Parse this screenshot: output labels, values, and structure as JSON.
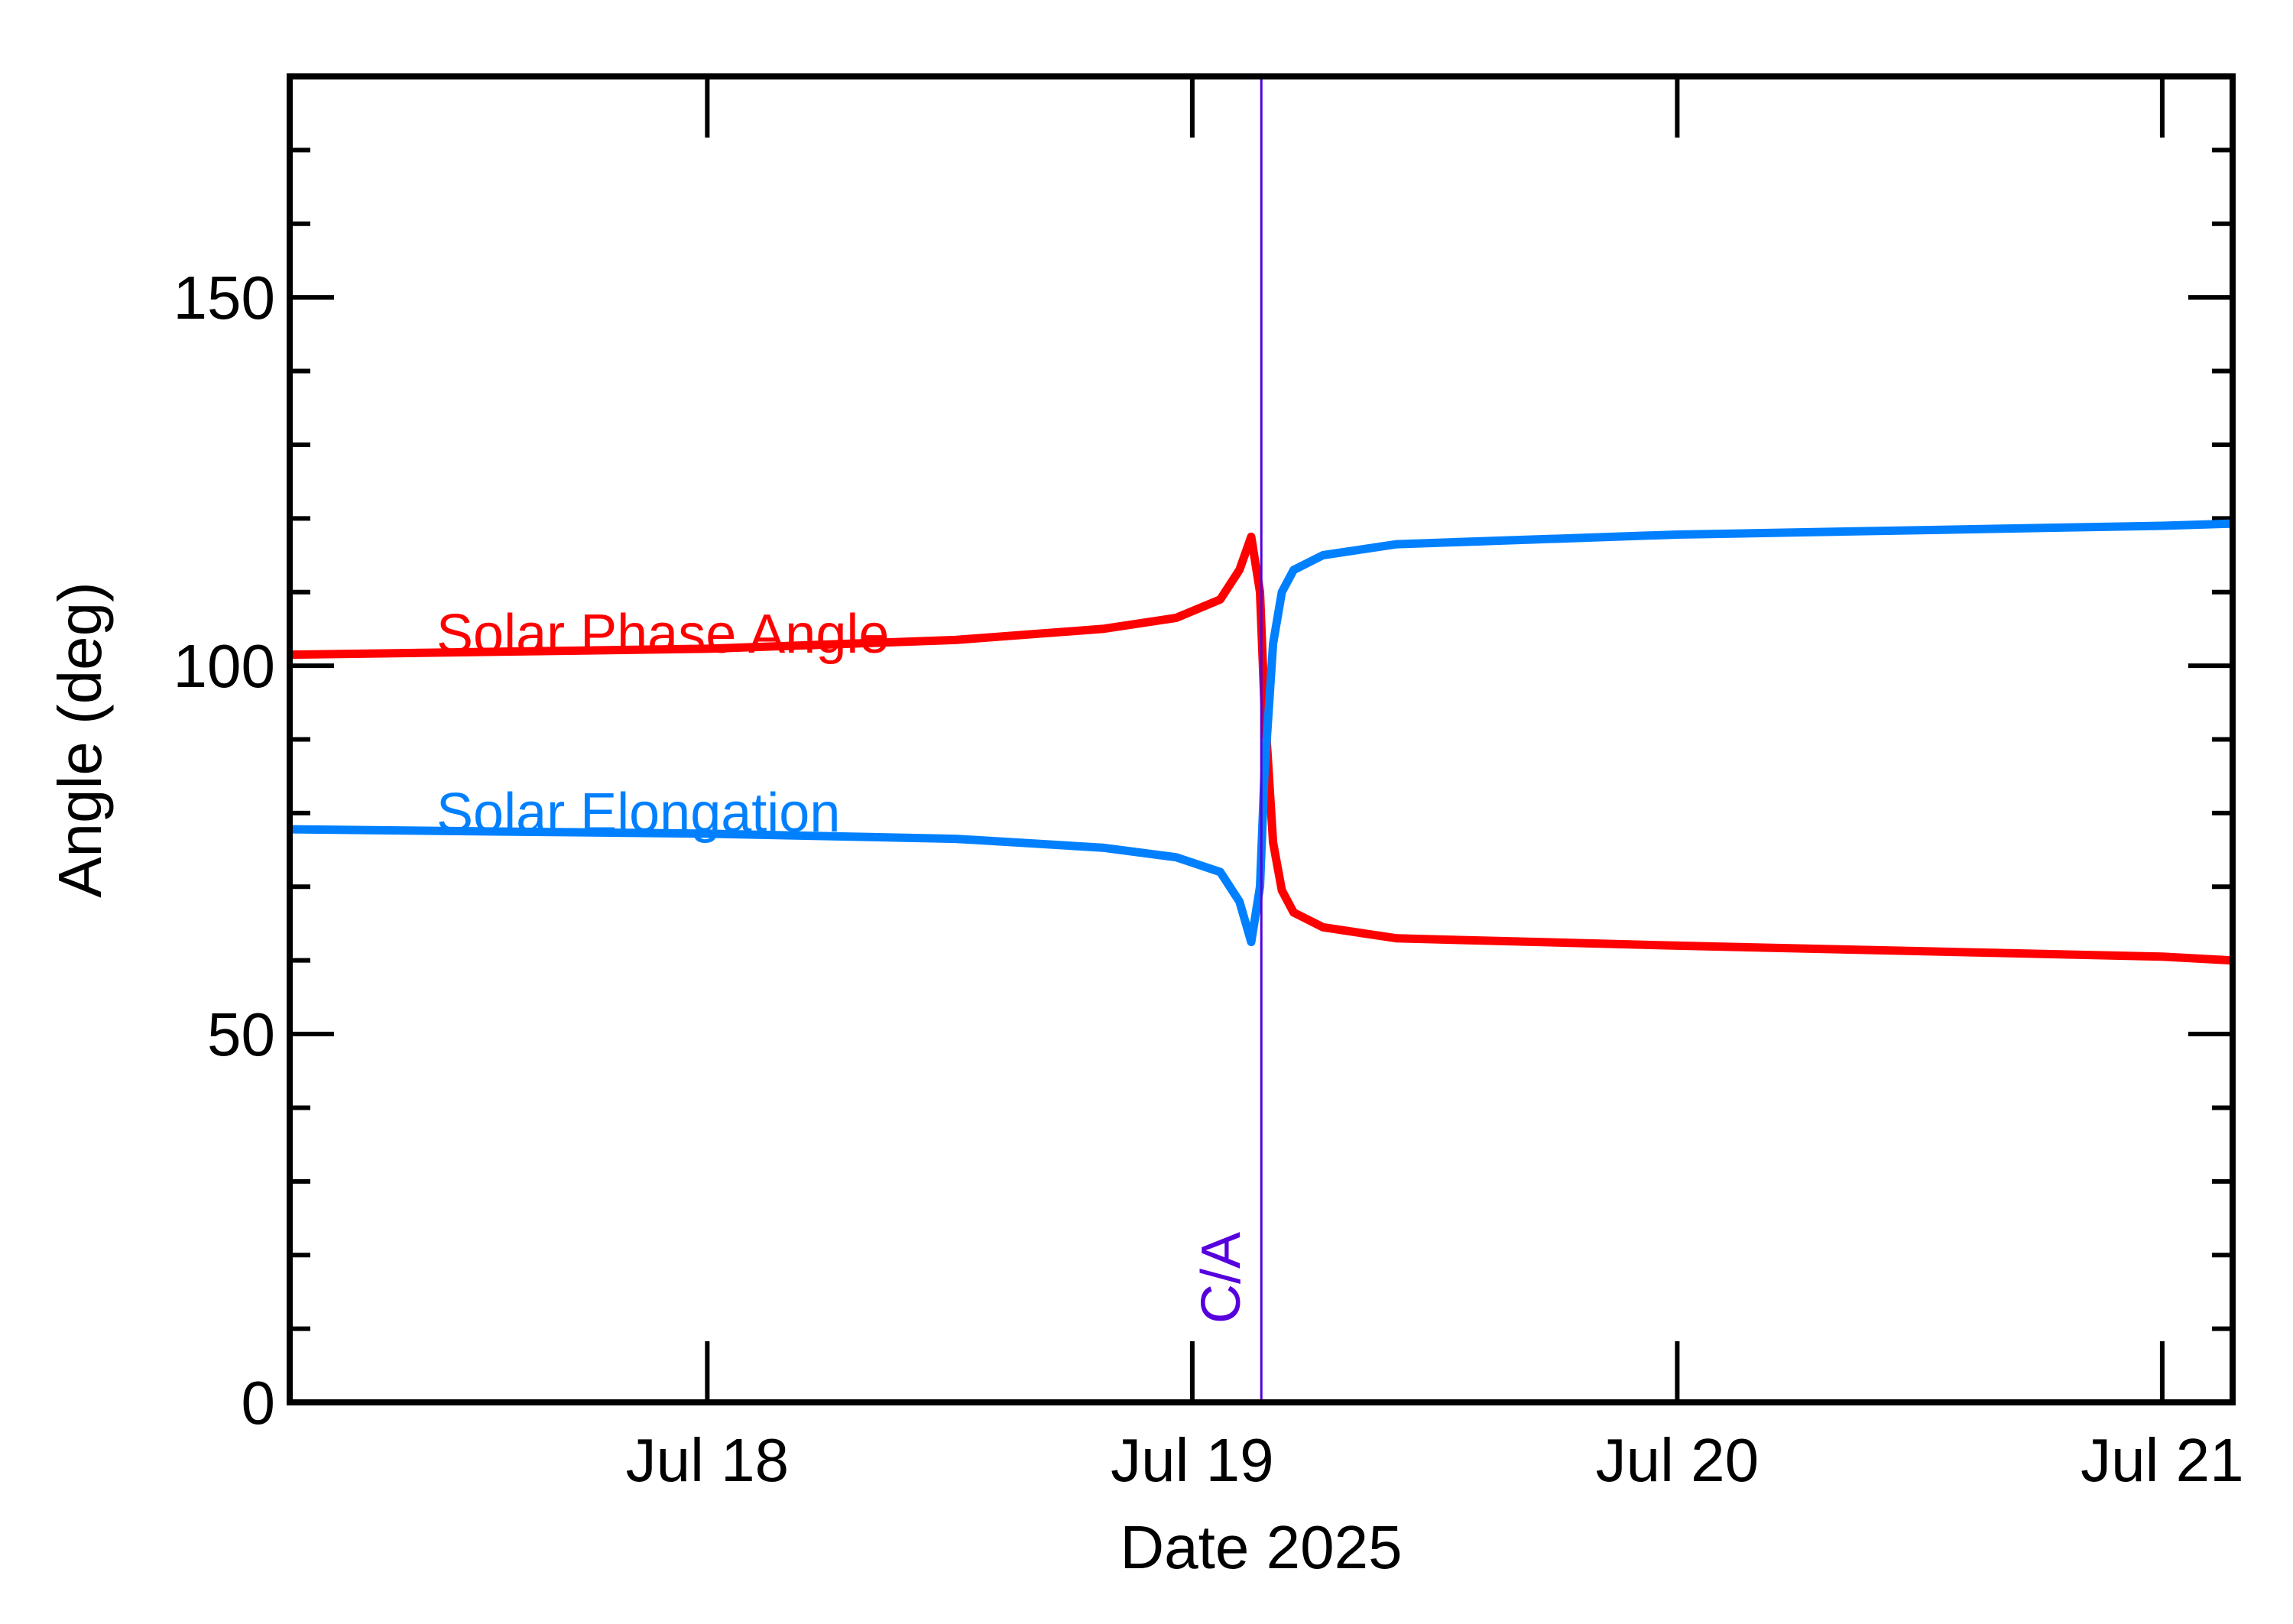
{
  "chart_data": {
    "type": "line",
    "title": "",
    "xlabel": "Date 2025",
    "ylabel": "Angle (deg)",
    "xlim": [
      "2025-07-17T03:20",
      "2025-07-21T03:29"
    ],
    "ylim": [
      0,
      180
    ],
    "x_ticks": [
      {
        "date": "2025-07-18T00:00",
        "label": "Jul 18"
      },
      {
        "date": "2025-07-19T00:00",
        "label": "Jul 19"
      },
      {
        "date": "2025-07-20T00:00",
        "label": "Jul 20"
      },
      {
        "date": "2025-07-21T00:00",
        "label": "Jul 21"
      }
    ],
    "y_ticks": [
      {
        "value": 0,
        "label": "0"
      },
      {
        "value": 50,
        "label": "50"
      },
      {
        "value": 100,
        "label": "100"
      },
      {
        "value": 150,
        "label": "150"
      }
    ],
    "y_minor_step": 10,
    "grid": false,
    "marker": {
      "date": "2025-07-19T03:25",
      "label": "C/A",
      "color": "#5500dd"
    },
    "series": [
      {
        "name": "Solar Phase Angle",
        "color": "#ff0000",
        "points": [
          [
            "2025-07-17T03:20",
            101.5
          ],
          [
            "2025-07-18T00:00",
            102.3
          ],
          [
            "2025-07-18T12:17",
            103.5
          ],
          [
            "2025-07-18T19:34",
            105.0
          ],
          [
            "2025-07-18T23:12",
            106.5
          ],
          [
            "2025-07-19T01:23",
            109.0
          ],
          [
            "2025-07-19T02:20",
            113.0
          ],
          [
            "2025-07-19T02:55",
            117.5
          ],
          [
            "2025-07-19T03:21",
            110.0
          ],
          [
            "2025-07-19T03:34",
            95.0
          ],
          [
            "2025-07-19T04:00",
            76.0
          ],
          [
            "2025-07-19T04:26",
            69.5
          ],
          [
            "2025-07-19T05:01",
            66.5
          ],
          [
            "2025-07-19T06:28",
            64.5
          ],
          [
            "2025-07-19T10:07",
            63.0
          ],
          [
            "2025-07-20T00:00",
            62.0
          ],
          [
            "2025-07-21T00:00",
            60.5
          ],
          [
            "2025-07-21T03:29",
            60.0
          ]
        ]
      },
      {
        "name": "Solar Elongation",
        "color": "#0080ff",
        "points": [
          [
            "2025-07-17T03:20",
            77.8
          ],
          [
            "2025-07-18T00:00",
            77.2
          ],
          [
            "2025-07-18T12:17",
            76.5
          ],
          [
            "2025-07-18T19:34",
            75.3
          ],
          [
            "2025-07-18T23:12",
            74.0
          ],
          [
            "2025-07-19T01:23",
            72.0
          ],
          [
            "2025-07-19T02:20",
            68.0
          ],
          [
            "2025-07-19T02:55",
            62.5
          ],
          [
            "2025-07-19T03:21",
            70.0
          ],
          [
            "2025-07-19T03:34",
            85.0
          ],
          [
            "2025-07-19T04:00",
            103.0
          ],
          [
            "2025-07-19T04:26",
            110.0
          ],
          [
            "2025-07-19T05:01",
            113.0
          ],
          [
            "2025-07-19T06:28",
            115.0
          ],
          [
            "2025-07-19T10:07",
            116.5
          ],
          [
            "2025-07-20T00:00",
            117.8
          ],
          [
            "2025-07-21T00:00",
            119.0
          ],
          [
            "2025-07-21T03:29",
            119.3
          ]
        ]
      }
    ]
  }
}
